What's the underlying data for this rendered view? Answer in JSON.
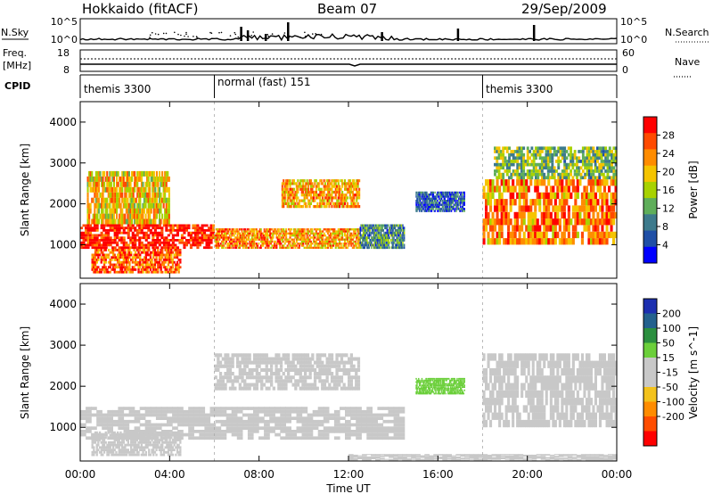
{
  "header": {
    "station": "Hokkaido (fitACF)",
    "beam": "Beam 07",
    "date": "29/Sep/2009"
  },
  "panels": {
    "nsky": {
      "left_label": "N.Sky",
      "right_label": "N.Search",
      "left_ticks": [
        "10^5",
        "10^0"
      ],
      "right_ticks": [
        "10^5",
        "10^0"
      ]
    },
    "freq": {
      "left_label_1": "Freq.",
      "left_label_2": "[MHz]",
      "right_label": "Nave",
      "left_ticks": [
        "18",
        "8"
      ],
      "right_ticks": [
        "60",
        "0"
      ]
    },
    "cpid": {
      "label": "CPID",
      "segments": [
        {
          "name": "themis 3300",
          "start_hour": 0
        },
        {
          "name": "normal (fast) 151",
          "start_hour": 6
        },
        {
          "name": "themis 3300",
          "start_hour": 18
        }
      ]
    }
  },
  "colors": {
    "power_scale": [
      "#0000ff",
      "#1f4fa6",
      "#3d7a8c",
      "#5fae5a",
      "#a8d200",
      "#f5c400",
      "#ff8c00",
      "#ff4a00",
      "#ff0000"
    ],
    "velocity_scale": [
      "#1c2fb0",
      "#23618e",
      "#2b8f3f",
      "#6bcf3a",
      "#c8c8c8",
      "#c8c8c8",
      "#f3c21c",
      "#ff8c00",
      "#ff4d00",
      "#ff0000"
    ]
  },
  "chart_data": [
    {
      "type": "heatmap",
      "name": "power",
      "ylabel": "Slant Range [km]",
      "ylim": [
        180,
        4500
      ],
      "y_ticks": [
        1000,
        2000,
        3000,
        4000
      ],
      "colorbar_label": "Power [dB]",
      "colorbar_ticks": [
        4,
        8,
        12,
        16,
        20,
        24,
        28
      ],
      "colorbar_range": [
        0,
        32
      ],
      "echo_regions": [
        {
          "t": [
            0.0,
            6.0
          ],
          "range_km": [
            900,
            1500
          ],
          "value": 30
        },
        {
          "t": [
            0.5,
            4.5
          ],
          "range_km": [
            300,
            900
          ],
          "value": 26
        },
        {
          "t": [
            0.3,
            4.0
          ],
          "range_km": [
            1500,
            2800
          ],
          "value": 20
        },
        {
          "t": [
            6.0,
            9.0
          ],
          "range_km": [
            900,
            1400
          ],
          "value": 24
        },
        {
          "t": [
            9.0,
            12.5
          ],
          "range_km": [
            900,
            1400
          ],
          "value": 22
        },
        {
          "t": [
            12.5,
            14.5
          ],
          "range_km": [
            900,
            1500
          ],
          "value": 10
        },
        {
          "t": [
            9.0,
            12.5
          ],
          "range_km": [
            1900,
            2600
          ],
          "value": 22
        },
        {
          "t": [
            15.0,
            17.2
          ],
          "range_km": [
            1800,
            2300
          ],
          "value": 6
        },
        {
          "t": [
            18.0,
            24.0
          ],
          "range_km": [
            1000,
            2600
          ],
          "value": 24
        },
        {
          "t": [
            18.5,
            24.0
          ],
          "range_km": [
            2600,
            3400
          ],
          "value": 14
        }
      ]
    },
    {
      "type": "heatmap",
      "name": "velocity",
      "ylabel": "Slant Range [km]",
      "ylim": [
        180,
        4500
      ],
      "y_ticks": [
        1000,
        2000,
        3000,
        4000
      ],
      "colorbar_label": "Velocity [m s^-1]",
      "colorbar_ticks": [
        200,
        100,
        50,
        15,
        -15,
        -50,
        -100,
        -200
      ],
      "colorbar_range": [
        -250,
        250
      ],
      "echo_regions": [
        {
          "t": [
            0.0,
            14.5
          ],
          "range_km": [
            700,
            1500
          ],
          "value": 0
        },
        {
          "t": [
            0.5,
            4.5
          ],
          "range_km": [
            300,
            900
          ],
          "value": 0
        },
        {
          "t": [
            6.0,
            12.5
          ],
          "range_km": [
            1900,
            2800
          ],
          "value": 0
        },
        {
          "t": [
            15.0,
            17.2
          ],
          "range_km": [
            1800,
            2200
          ],
          "value": 60
        },
        {
          "t": [
            18.0,
            24.0
          ],
          "range_km": [
            1000,
            2800
          ],
          "value": 0
        },
        {
          "t": [
            12.0,
            24.0
          ],
          "range_km": [
            200,
            350
          ],
          "value": -40
        }
      ]
    }
  ],
  "x_axis": {
    "label": "Time UT",
    "ticks": [
      "00:00",
      "04:00",
      "08:00",
      "12:00",
      "16:00",
      "20:00",
      "00:00"
    ],
    "range_hours": [
      0,
      24
    ]
  }
}
